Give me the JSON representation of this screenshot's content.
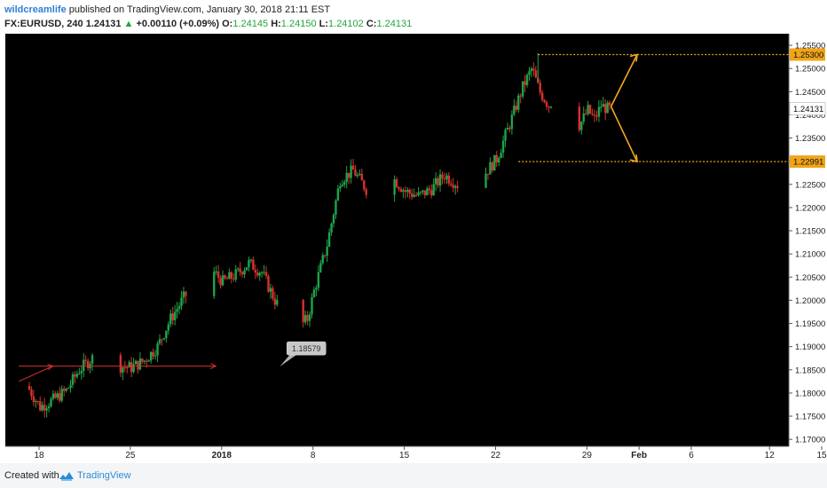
{
  "header": {
    "author": "wildcreamlife",
    "published_text": "published on TradingView.com, January 30, 2018 21:11 EST",
    "symbol": "FX:EURUSD, 240",
    "last": "1.24131",
    "change": "+0.00110 (+0.09%)",
    "o_label": "O:",
    "o_value": "1.24145",
    "h_label": "H:",
    "h_value": "1.24150",
    "l_label": "L:",
    "l_value": "1.24102",
    "c_label": "C:",
    "c_value": "1.24131"
  },
  "footer": {
    "created_with": "Created with",
    "brand": "TradingView"
  },
  "colors": {
    "background": "#000000",
    "bull": "#1fa34a",
    "bear": "#d6322b",
    "arrow": "#f5a623",
    "level": "#f0a418",
    "red_line": "#d6322b"
  },
  "chart_data": {
    "type": "candlestick",
    "ylim": [
      1.1685,
      1.2575
    ],
    "y_ticks": [
      "1.25500",
      "1.25000",
      "1.24500",
      "1.24000",
      "1.23500",
      "1.23000",
      "1.22500",
      "1.22000",
      "1.21500",
      "1.21000",
      "1.20500",
      "1.20000",
      "1.19500",
      "1.19000",
      "1.18500",
      "1.18000",
      "1.17500",
      "1.17000"
    ],
    "y_tick_values": [
      1.255,
      1.25,
      1.245,
      1.24,
      1.235,
      1.23,
      1.225,
      1.22,
      1.215,
      1.21,
      1.205,
      1.2,
      1.195,
      1.19,
      1.185,
      1.18,
      1.175,
      1.17
    ],
    "x_ticks": [
      "18",
      "25",
      "2018",
      "8",
      "15",
      "22",
      "29",
      "Feb",
      "6",
      "12",
      "15"
    ],
    "x_tick_days": [
      0,
      7,
      14,
      21,
      28,
      35,
      42,
      46,
      50,
      56,
      60
    ],
    "path_days": [
      0,
      1,
      2,
      3,
      4,
      5,
      6,
      7,
      8,
      9,
      10,
      11,
      12,
      13,
      14,
      15,
      16,
      17,
      18,
      19,
      20,
      21,
      21.5,
      22,
      23,
      24,
      25,
      26,
      27,
      28,
      29,
      30,
      31,
      32,
      33,
      34,
      35,
      36,
      37,
      38,
      38.7,
      39.3,
      40,
      40.5,
      41,
      41.5,
      42,
      42.5,
      43,
      43.5,
      44,
      44.5
    ],
    "path_prices": [
      1.1815,
      1.177,
      1.1785,
      1.1805,
      1.185,
      1.1875,
      1.186,
      1.1858,
      1.1855,
      1.187,
      1.19,
      1.196,
      1.2005,
      1.204,
      1.207,
      1.204,
      1.2055,
      1.208,
      1.206,
      1.2,
      1.1955,
      1.1945,
      1.196,
      1.202,
      1.212,
      1.226,
      1.228,
      1.224,
      1.221,
      1.2265,
      1.2235,
      1.2225,
      1.224,
      1.227,
      1.225,
      1.2235,
      1.227,
      1.2305,
      1.238,
      1.246,
      1.25,
      1.245,
      1.242,
      1.244,
      1.2395,
      1.238,
      1.2365,
      1.2385,
      1.241,
      1.239,
      1.242,
      1.2413
    ],
    "levels": [
      {
        "label": "1.25300",
        "value": 1.253,
        "from_day": 39.0
      },
      {
        "label": "1.22991",
        "value": 1.22991,
        "from_day": 37.5
      }
    ],
    "horizontal_ray": {
      "value": 1.1858,
      "from_day": -0.8,
      "to_day": 14.3
    },
    "entry_arrow": {
      "from_day": -0.8,
      "from_value": 1.1825,
      "to_day": 1.8,
      "to_value": 1.1858
    },
    "projection": {
      "start_day": 44.6,
      "start_value": 1.2418,
      "up_day": 46.6,
      "up_value": 1.253,
      "down_day": 46.6,
      "down_value": 1.2299
    },
    "callout": {
      "label": "1.18579",
      "day": 19.2,
      "value": 1.1857
    },
    "current_price": {
      "label": "1.24131",
      "value": 1.24131
    }
  }
}
